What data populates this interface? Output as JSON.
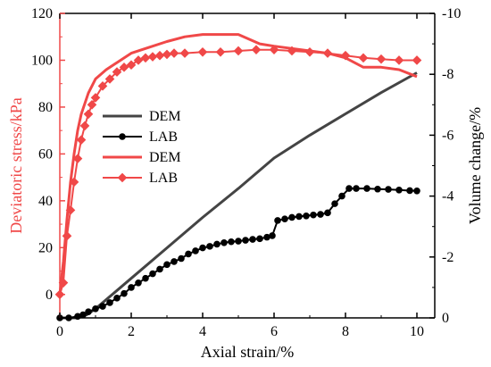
{
  "chart_data": {
    "type": "line",
    "xlabel": "Axial strain/%",
    "ylabel_left": "Deviatoric stress/kPa",
    "ylabel_right": "Volume change/%",
    "xlim": [
      0,
      10.5
    ],
    "ylim_left": [
      -10,
      120
    ],
    "ylim_right": [
      0,
      -10
    ],
    "x_ticks": [
      0,
      2,
      4,
      6,
      8,
      10
    ],
    "y_left_ticks": [
      0,
      20,
      40,
      60,
      80,
      100,
      120
    ],
    "y_right_ticks": [
      -10,
      -8,
      -6,
      -4,
      -2,
      0
    ],
    "grid": false,
    "legend_position": "left-middle",
    "colors": {
      "stress": "#f04848",
      "volume_dem": "#444444",
      "volume_lab": "#000000",
      "axis_left": "#f04848",
      "axis": "#000000"
    },
    "series": [
      {
        "name": "DEM",
        "axis": "right",
        "marker": "none",
        "color": "#444444",
        "points": [
          [
            0,
            0
          ],
          [
            0.5,
            0
          ],
          [
            0.75,
            -0.1
          ],
          [
            1,
            -0.3
          ],
          [
            2,
            -1.3
          ],
          [
            3,
            -2.3
          ],
          [
            4,
            -3.3
          ],
          [
            5,
            -4.25
          ],
          [
            6,
            -5.25
          ],
          [
            7,
            -6.0
          ],
          [
            8,
            -6.7
          ],
          [
            9,
            -7.4
          ],
          [
            10,
            -8.05
          ]
        ]
      },
      {
        "name": "LAB",
        "axis": "right",
        "marker": "circle",
        "color": "#000000",
        "points": [
          [
            0,
            0
          ],
          [
            0.25,
            0
          ],
          [
            0.5,
            -0.05
          ],
          [
            0.65,
            -0.1
          ],
          [
            0.8,
            -0.2
          ],
          [
            1,
            -0.3
          ],
          [
            1.2,
            -0.38
          ],
          [
            1.4,
            -0.5
          ],
          [
            1.6,
            -0.65
          ],
          [
            1.8,
            -0.8
          ],
          [
            2,
            -1.0
          ],
          [
            2.2,
            -1.15
          ],
          [
            2.4,
            -1.3
          ],
          [
            2.6,
            -1.45
          ],
          [
            2.8,
            -1.6
          ],
          [
            3,
            -1.75
          ],
          [
            3.2,
            -1.85
          ],
          [
            3.4,
            -1.95
          ],
          [
            3.6,
            -2.1
          ],
          [
            3.8,
            -2.2
          ],
          [
            4,
            -2.3
          ],
          [
            4.2,
            -2.35
          ],
          [
            4.4,
            -2.42
          ],
          [
            4.6,
            -2.47
          ],
          [
            4.8,
            -2.5
          ],
          [
            5,
            -2.52
          ],
          [
            5.2,
            -2.55
          ],
          [
            5.4,
            -2.58
          ],
          [
            5.6,
            -2.6
          ],
          [
            5.8,
            -2.65
          ],
          [
            5.95,
            -2.7
          ],
          [
            6.1,
            -3.2
          ],
          [
            6.3,
            -3.25
          ],
          [
            6.5,
            -3.3
          ],
          [
            6.7,
            -3.33
          ],
          [
            6.9,
            -3.35
          ],
          [
            7.1,
            -3.38
          ],
          [
            7.3,
            -3.4
          ],
          [
            7.5,
            -3.45
          ],
          [
            7.7,
            -3.75
          ],
          [
            7.9,
            -4.0
          ],
          [
            8.1,
            -4.25
          ],
          [
            8.3,
            -4.25
          ],
          [
            8.6,
            -4.25
          ],
          [
            8.9,
            -4.23
          ],
          [
            9.2,
            -4.22
          ],
          [
            9.5,
            -4.2
          ],
          [
            9.8,
            -4.18
          ],
          [
            10,
            -4.17
          ]
        ]
      },
      {
        "name": "DEM",
        "axis": "left",
        "marker": "none",
        "color": "#f04848",
        "points": [
          [
            0,
            0
          ],
          [
            0.1,
            14
          ],
          [
            0.2,
            32
          ],
          [
            0.3,
            48
          ],
          [
            0.4,
            60
          ],
          [
            0.5,
            70
          ],
          [
            0.6,
            77
          ],
          [
            0.8,
            86
          ],
          [
            1,
            92
          ],
          [
            1.3,
            96
          ],
          [
            1.6,
            99
          ],
          [
            2,
            103
          ],
          [
            2.4,
            105
          ],
          [
            3,
            108
          ],
          [
            3.5,
            110
          ],
          [
            4,
            111
          ],
          [
            4.5,
            111
          ],
          [
            5,
            111
          ],
          [
            5.3,
            109
          ],
          [
            5.6,
            107
          ],
          [
            6,
            106
          ],
          [
            6.5,
            105
          ],
          [
            7,
            104
          ],
          [
            7.5,
            103
          ],
          [
            8,
            101
          ],
          [
            8.5,
            97
          ],
          [
            9,
            97
          ],
          [
            9.5,
            96
          ],
          [
            10,
            93
          ]
        ]
      },
      {
        "name": "LAB",
        "axis": "left",
        "marker": "diamond",
        "color": "#f04848",
        "points": [
          [
            0,
            0
          ],
          [
            0.1,
            5
          ],
          [
            0.2,
            25
          ],
          [
            0.3,
            36
          ],
          [
            0.4,
            48
          ],
          [
            0.5,
            58
          ],
          [
            0.6,
            66
          ],
          [
            0.7,
            72
          ],
          [
            0.8,
            77
          ],
          [
            0.9,
            81
          ],
          [
            1,
            84
          ],
          [
            1.2,
            89
          ],
          [
            1.4,
            92
          ],
          [
            1.6,
            95
          ],
          [
            1.8,
            97
          ],
          [
            2,
            98
          ],
          [
            2.2,
            100
          ],
          [
            2.4,
            101
          ],
          [
            2.6,
            101.5
          ],
          [
            2.8,
            102
          ],
          [
            3,
            102.5
          ],
          [
            3.2,
            103
          ],
          [
            3.5,
            103
          ],
          [
            4,
            103.5
          ],
          [
            4.5,
            103.5
          ],
          [
            5,
            104
          ],
          [
            5.5,
            104.5
          ],
          [
            6,
            104.5
          ],
          [
            6.5,
            104
          ],
          [
            7,
            103.5
          ],
          [
            7.5,
            103
          ],
          [
            8,
            102
          ],
          [
            8.5,
            101
          ],
          [
            9,
            100.5
          ],
          [
            9.5,
            100
          ],
          [
            10,
            100
          ]
        ]
      }
    ]
  }
}
